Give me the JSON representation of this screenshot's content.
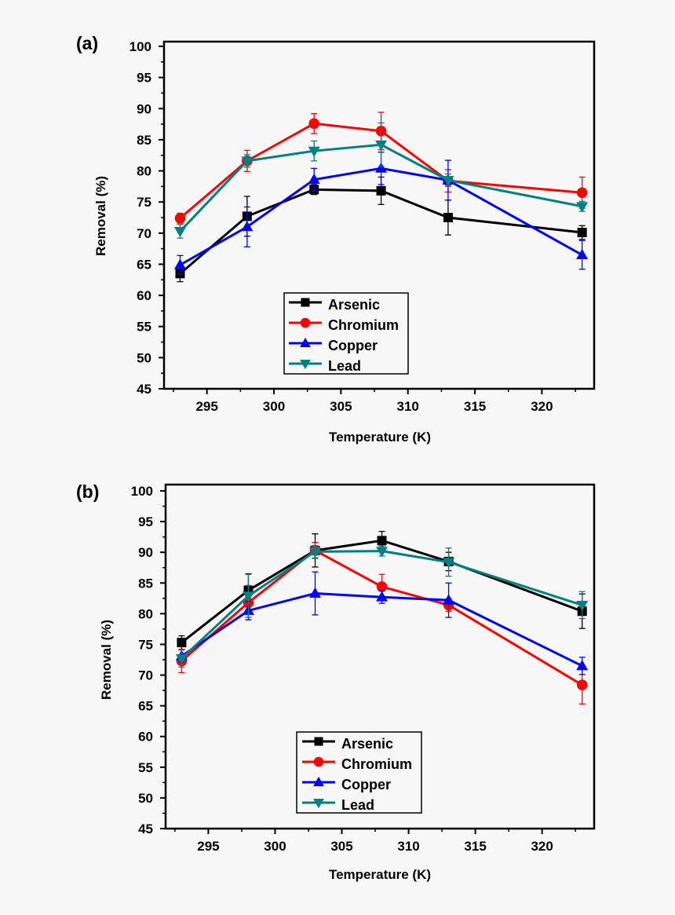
{
  "chart_data": [
    {
      "type": "line",
      "panel_label": "(a)",
      "xlabel": "Temperature (K)",
      "ylabel": "Removal (%)",
      "xlim": [
        291.8,
        323.9
      ],
      "ylim": [
        45,
        100
      ],
      "xticks": [
        295,
        300,
        305,
        310,
        315,
        320
      ],
      "yticks": [
        45,
        50,
        55,
        60,
        65,
        70,
        75,
        80,
        85,
        90,
        95,
        100
      ],
      "grid": false,
      "legend_position": "bottom-center",
      "x": [
        293,
        298,
        303,
        308,
        313,
        323
      ],
      "series": [
        {
          "name": "Arsenic",
          "color": "#000000",
          "marker": "square",
          "values": [
            63.5,
            72.7,
            77.0,
            76.8,
            72.5,
            70.1
          ],
          "errors": [
            1.3,
            3.2,
            0.8,
            2.2,
            2.8,
            1.1
          ]
        },
        {
          "name": "Chromium",
          "color": "#ff0000",
          "marker": "circle",
          "values": [
            72.4,
            81.6,
            87.6,
            86.4,
            78.4,
            76.5
          ],
          "errors": [
            0.8,
            1.7,
            1.6,
            3.0,
            1.8,
            2.5
          ]
        },
        {
          "name": "Copper",
          "color": "#0000ff",
          "marker": "triangle-up",
          "values": [
            64.9,
            71.0,
            78.6,
            80.4,
            78.5,
            66.5
          ],
          "errors": [
            1.5,
            3.2,
            1.8,
            2.6,
            3.2,
            2.3
          ]
        },
        {
          "name": "Lead",
          "color": "#008080",
          "marker": "triangle-down",
          "values": [
            70.3,
            81.6,
            83.2,
            84.2,
            78.5,
            74.3
          ],
          "errors": [
            1.1,
            1.0,
            1.6,
            3.5,
            1.0,
            0.8
          ]
        }
      ]
    },
    {
      "type": "line",
      "panel_label": "(b)",
      "xlabel": "Temperature (K)",
      "ylabel": "Removal (%)",
      "xlim": [
        291.8,
        323.9
      ],
      "ylim": [
        45,
        100
      ],
      "xticks": [
        295,
        300,
        305,
        310,
        315,
        320
      ],
      "yticks": [
        45,
        50,
        55,
        60,
        65,
        70,
        75,
        80,
        85,
        90,
        95,
        100
      ],
      "grid": false,
      "legend_position": "bottom-center",
      "x": [
        293,
        298,
        303,
        308,
        313,
        323
      ],
      "series": [
        {
          "name": "Arsenic",
          "color": "#000000",
          "marker": "square",
          "values": [
            75.3,
            83.8,
            90.3,
            91.9,
            88.5,
            80.4
          ],
          "errors": [
            1.1,
            2.7,
            2.7,
            1.5,
            1.5,
            2.8
          ]
        },
        {
          "name": "Chromium",
          "color": "#ff0000",
          "marker": "circle",
          "values": [
            72.3,
            81.8,
            90.3,
            84.4,
            81.4,
            68.4
          ],
          "errors": [
            1.9,
            2.8,
            1.3,
            2.0,
            1.0,
            3.1
          ]
        },
        {
          "name": "Copper",
          "color": "#0000ff",
          "marker": "triangle-up",
          "values": [
            73.1,
            80.5,
            83.3,
            82.7,
            82.2,
            71.5
          ],
          "errors": [
            1.0,
            1.5,
            3.5,
            1.0,
            2.8,
            1.4
          ]
        },
        {
          "name": "Lead",
          "color": "#008080",
          "marker": "triangle-down",
          "values": [
            72.7,
            82.9,
            90.1,
            90.2,
            88.4,
            81.4
          ],
          "errors": [
            1.4,
            3.5,
            1.0,
            0.8,
            2.3,
            2.2
          ]
        }
      ]
    }
  ]
}
